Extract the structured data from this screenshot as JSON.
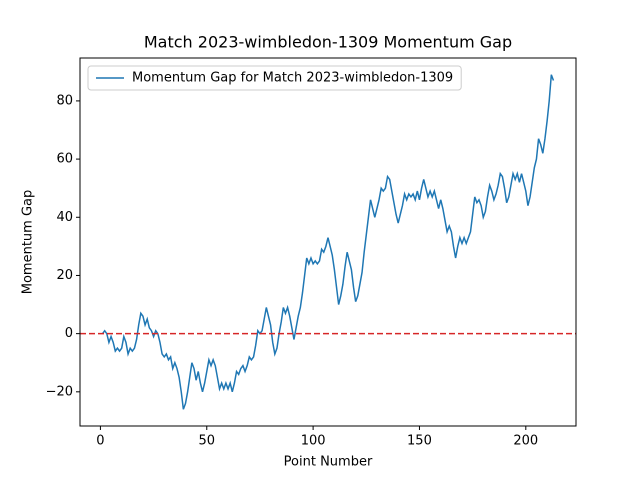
{
  "chart_data": {
    "type": "line",
    "title": "Match 2023-wimbledon-1309 Momentum Gap",
    "xlabel": "Point Number",
    "ylabel": "Momentum Gap",
    "x": [
      1,
      2,
      3,
      4,
      5,
      6,
      7,
      8,
      9,
      10,
      11,
      12,
      13,
      14,
      15,
      16,
      17,
      18,
      19,
      20,
      21,
      22,
      23,
      24,
      25,
      26,
      27,
      28,
      29,
      30,
      31,
      32,
      33,
      34,
      35,
      36,
      37,
      38,
      39,
      40,
      41,
      42,
      43,
      44,
      45,
      46,
      47,
      48,
      49,
      50,
      51,
      52,
      53,
      54,
      55,
      56,
      57,
      58,
      59,
      60,
      61,
      62,
      63,
      64,
      65,
      66,
      67,
      68,
      69,
      70,
      71,
      72,
      73,
      74,
      75,
      76,
      77,
      78,
      79,
      80,
      81,
      82,
      83,
      84,
      85,
      86,
      87,
      88,
      89,
      90,
      91,
      92,
      93,
      94,
      95,
      96,
      97,
      98,
      99,
      100,
      101,
      102,
      103,
      104,
      105,
      106,
      107,
      108,
      109,
      110,
      111,
      112,
      113,
      114,
      115,
      116,
      117,
      118,
      119,
      120,
      121,
      122,
      123,
      124,
      125,
      126,
      127,
      128,
      129,
      130,
      131,
      132,
      133,
      134,
      135,
      136,
      137,
      138,
      139,
      140,
      141,
      142,
      143,
      144,
      145,
      146,
      147,
      148,
      149,
      150,
      151,
      152,
      153,
      154,
      155,
      156,
      157,
      158,
      159,
      160,
      161,
      162,
      163,
      164,
      165,
      166,
      167,
      168,
      169,
      170,
      171,
      172,
      173,
      174,
      175,
      176,
      177,
      178,
      179,
      180,
      181,
      182,
      183,
      184,
      185,
      186,
      187,
      188,
      189,
      190,
      191,
      192,
      193,
      194,
      195,
      196,
      197,
      198,
      199,
      200,
      201,
      202,
      203,
      204,
      205,
      206,
      207,
      208,
      209,
      210,
      211,
      212,
      213
    ],
    "series": [
      {
        "name": "Momentum Gap for Match 2023-wimbledon-1309",
        "color": "#1f77b4",
        "values": [
          0,
          1,
          0,
          -3,
          -1,
          -3,
          -6,
          -5,
          -6,
          -5,
          -1,
          -3,
          -7,
          -5,
          -6,
          -5,
          -2,
          3,
          7,
          6,
          3,
          5,
          2,
          1,
          -1,
          1,
          0,
          -3,
          -7,
          -8,
          -7,
          -9,
          -8,
          -12,
          -10,
          -12,
          -15,
          -20,
          -26,
          -24,
          -20,
          -15,
          -10,
          -12,
          -16,
          -13,
          -17,
          -20,
          -17,
          -13,
          -9,
          -11,
          -9,
          -11,
          -15,
          -19,
          -17,
          -19,
          -17,
          -19,
          -17,
          -20,
          -17,
          -13,
          -14,
          -12,
          -11,
          -13,
          -11,
          -8,
          -9,
          -8,
          -4,
          1,
          0,
          1,
          5,
          9,
          6,
          3,
          -3,
          -7,
          -5,
          0,
          4,
          9,
          7,
          9,
          6,
          2,
          -2,
          2,
          6,
          9,
          14,
          20,
          26,
          24,
          26,
          24,
          25,
          24,
          25,
          29,
          28,
          30,
          33,
          30,
          27,
          22,
          16,
          10,
          13,
          17,
          23,
          28,
          25,
          22,
          16,
          11,
          13,
          17,
          21,
          28,
          34,
          40,
          46,
          43,
          40,
          43,
          46,
          50,
          49,
          50,
          54,
          53,
          49,
          45,
          41,
          38,
          41,
          44,
          48,
          46,
          48,
          47,
          48,
          46,
          49,
          46,
          50,
          53,
          50,
          47,
          49,
          47,
          49,
          46,
          43,
          46,
          43,
          39,
          35,
          37,
          35,
          30,
          26,
          30,
          33,
          31,
          33,
          31,
          33,
          35,
          41,
          47,
          45,
          46,
          44,
          40,
          42,
          47,
          51,
          49,
          46,
          48,
          51,
          55,
          54,
          50,
          45,
          47,
          51,
          55,
          53,
          55,
          52,
          55,
          52,
          49,
          44,
          47,
          52,
          57,
          60,
          67,
          65,
          62,
          67,
          73,
          80,
          89,
          87
        ]
      }
    ],
    "hline": {
      "value": 0,
      "color": "#d62728",
      "style": "dashed"
    },
    "xlim": [
      -9.6,
      223.6
    ],
    "ylim": [
      -31.75,
      94.75
    ],
    "xticks": [
      0,
      50,
      100,
      150,
      200
    ],
    "yticks": [
      {
        "value": -20,
        "label": "−20"
      },
      0,
      20,
      40,
      60,
      80
    ],
    "legend": "upper left"
  }
}
